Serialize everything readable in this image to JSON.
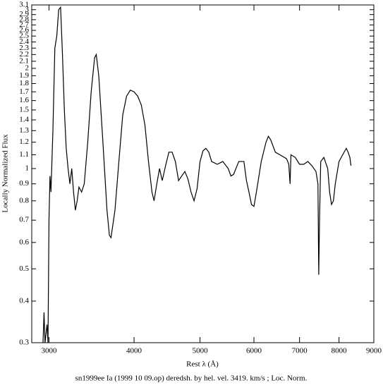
{
  "chart_data": {
    "type": "line",
    "title": "sn1999ee Ia (1999 10 09.op) deredsh. by hel. vel.  3419. km/s ;  Loc. Norm.",
    "x_label": "Rest λ (Å)",
    "y_label": "Locally Normalized Flux",
    "x": [
      2940,
      2950,
      2960,
      2980,
      2990,
      3000,
      3010,
      3020,
      3040,
      3060,
      3080,
      3100,
      3120,
      3140,
      3160,
      3180,
      3200,
      3220,
      3240,
      3260,
      3280,
      3300,
      3320,
      3350,
      3380,
      3420,
      3460,
      3500,
      3520,
      3550,
      3600,
      3650,
      3680,
      3700,
      3750,
      3800,
      3850,
      3900,
      3950,
      4000,
      4050,
      4100,
      4150,
      4200,
      4250,
      4280,
      4320,
      4360,
      4400,
      4450,
      4500,
      4550,
      4600,
      4650,
      4700,
      4750,
      4800,
      4850,
      4900,
      4950,
      5000,
      5050,
      5100,
      5150,
      5200,
      5300,
      5400,
      5500,
      5550,
      5600,
      5700,
      5800,
      5850,
      5900,
      5950,
      6000,
      6050,
      6150,
      6250,
      6300,
      6350,
      6450,
      6550,
      6650,
      6700,
      6750,
      6780,
      6800,
      6900,
      7000,
      7100,
      7200,
      7300,
      7400,
      7450,
      7470,
      7490,
      7520,
      7600,
      7700,
      7750,
      7800,
      7850,
      7900,
      8000,
      8100,
      8200,
      8250,
      8300,
      8330
    ],
    "values": [
      0.3,
      0.37,
      0.3,
      0.34,
      0.3,
      0.7,
      0.95,
      0.85,
      1.3,
      2.3,
      2.5,
      3.0,
      3.05,
      2.2,
      1.5,
      1.15,
      1.0,
      0.9,
      1.0,
      0.85,
      0.75,
      0.8,
      0.88,
      0.85,
      0.9,
      1.2,
      1.7,
      2.15,
      2.2,
      1.9,
      1.2,
      0.75,
      0.63,
      0.62,
      0.75,
      1.05,
      1.45,
      1.65,
      1.72,
      1.7,
      1.65,
      1.55,
      1.35,
      1.05,
      0.85,
      0.8,
      0.9,
      1.0,
      0.92,
      1.02,
      1.12,
      1.12,
      1.05,
      0.92,
      0.95,
      0.98,
      0.93,
      0.85,
      0.8,
      0.87,
      1.05,
      1.13,
      1.15,
      1.12,
      1.05,
      1.03,
      1.05,
      1.0,
      0.95,
      0.96,
      1.05,
      1.05,
      0.92,
      0.85,
      0.78,
      0.77,
      0.85,
      1.05,
      1.2,
      1.25,
      1.22,
      1.12,
      1.1,
      1.08,
      1.07,
      1.03,
      0.9,
      1.1,
      1.08,
      1.03,
      1.03,
      1.05,
      1.02,
      0.98,
      0.9,
      0.48,
      0.7,
      1.05,
      1.08,
      1.0,
      0.85,
      0.78,
      0.8,
      0.9,
      1.05,
      1.1,
      1.15,
      1.12,
      1.08,
      1.02
    ],
    "color": "#000000",
    "xscale": "log",
    "yscale": "log",
    "xlim": [
      2830,
      9000
    ],
    "ylim": [
      0.3,
      3.1
    ],
    "xticks": [
      3000,
      4000,
      5000,
      6000,
      7000,
      8000,
      9000
    ],
    "yticks": [
      0.3,
      0.4,
      0.5,
      0.6,
      0.7,
      0.8,
      0.9,
      1,
      1.1,
      1.2,
      1.3,
      1.4,
      1.5,
      1.6,
      1.7,
      1.8,
      1.9,
      2,
      2.1,
      2.2,
      2.3,
      2.4,
      2.5,
      2.6,
      2.7,
      2.8,
      2.9,
      3,
      3.1
    ]
  }
}
